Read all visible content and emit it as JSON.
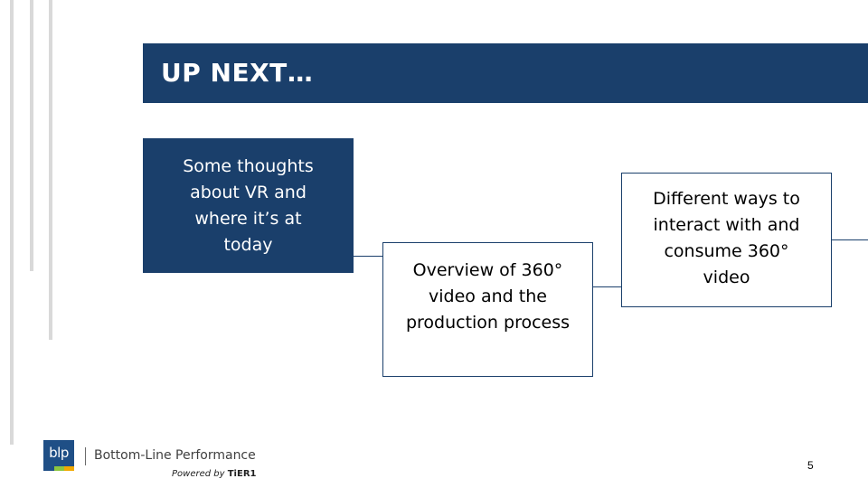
{
  "slide": {
    "title": "UP NEXT…",
    "page_number": "5"
  },
  "boxes": [
    {
      "lines": [
        "Some thoughts",
        "about VR and",
        "where it’s at",
        "today"
      ]
    },
    {
      "lines": [
        "Overview of 360°",
        "video and the",
        "production process"
      ]
    },
    {
      "lines": [
        "Different ways to",
        "interact with and",
        "consume 360°",
        "video"
      ]
    }
  ],
  "footer": {
    "logo_text": "blp",
    "company_name": "Bottom-Line Performance",
    "powered_prefix": "Powered by",
    "powered_brand": "TiER1"
  },
  "colors": {
    "primary": "#1a3f6b",
    "accent_green": "#8dc63f",
    "accent_orange": "#f2a900",
    "rule_gray": "#d9d9d9"
  }
}
